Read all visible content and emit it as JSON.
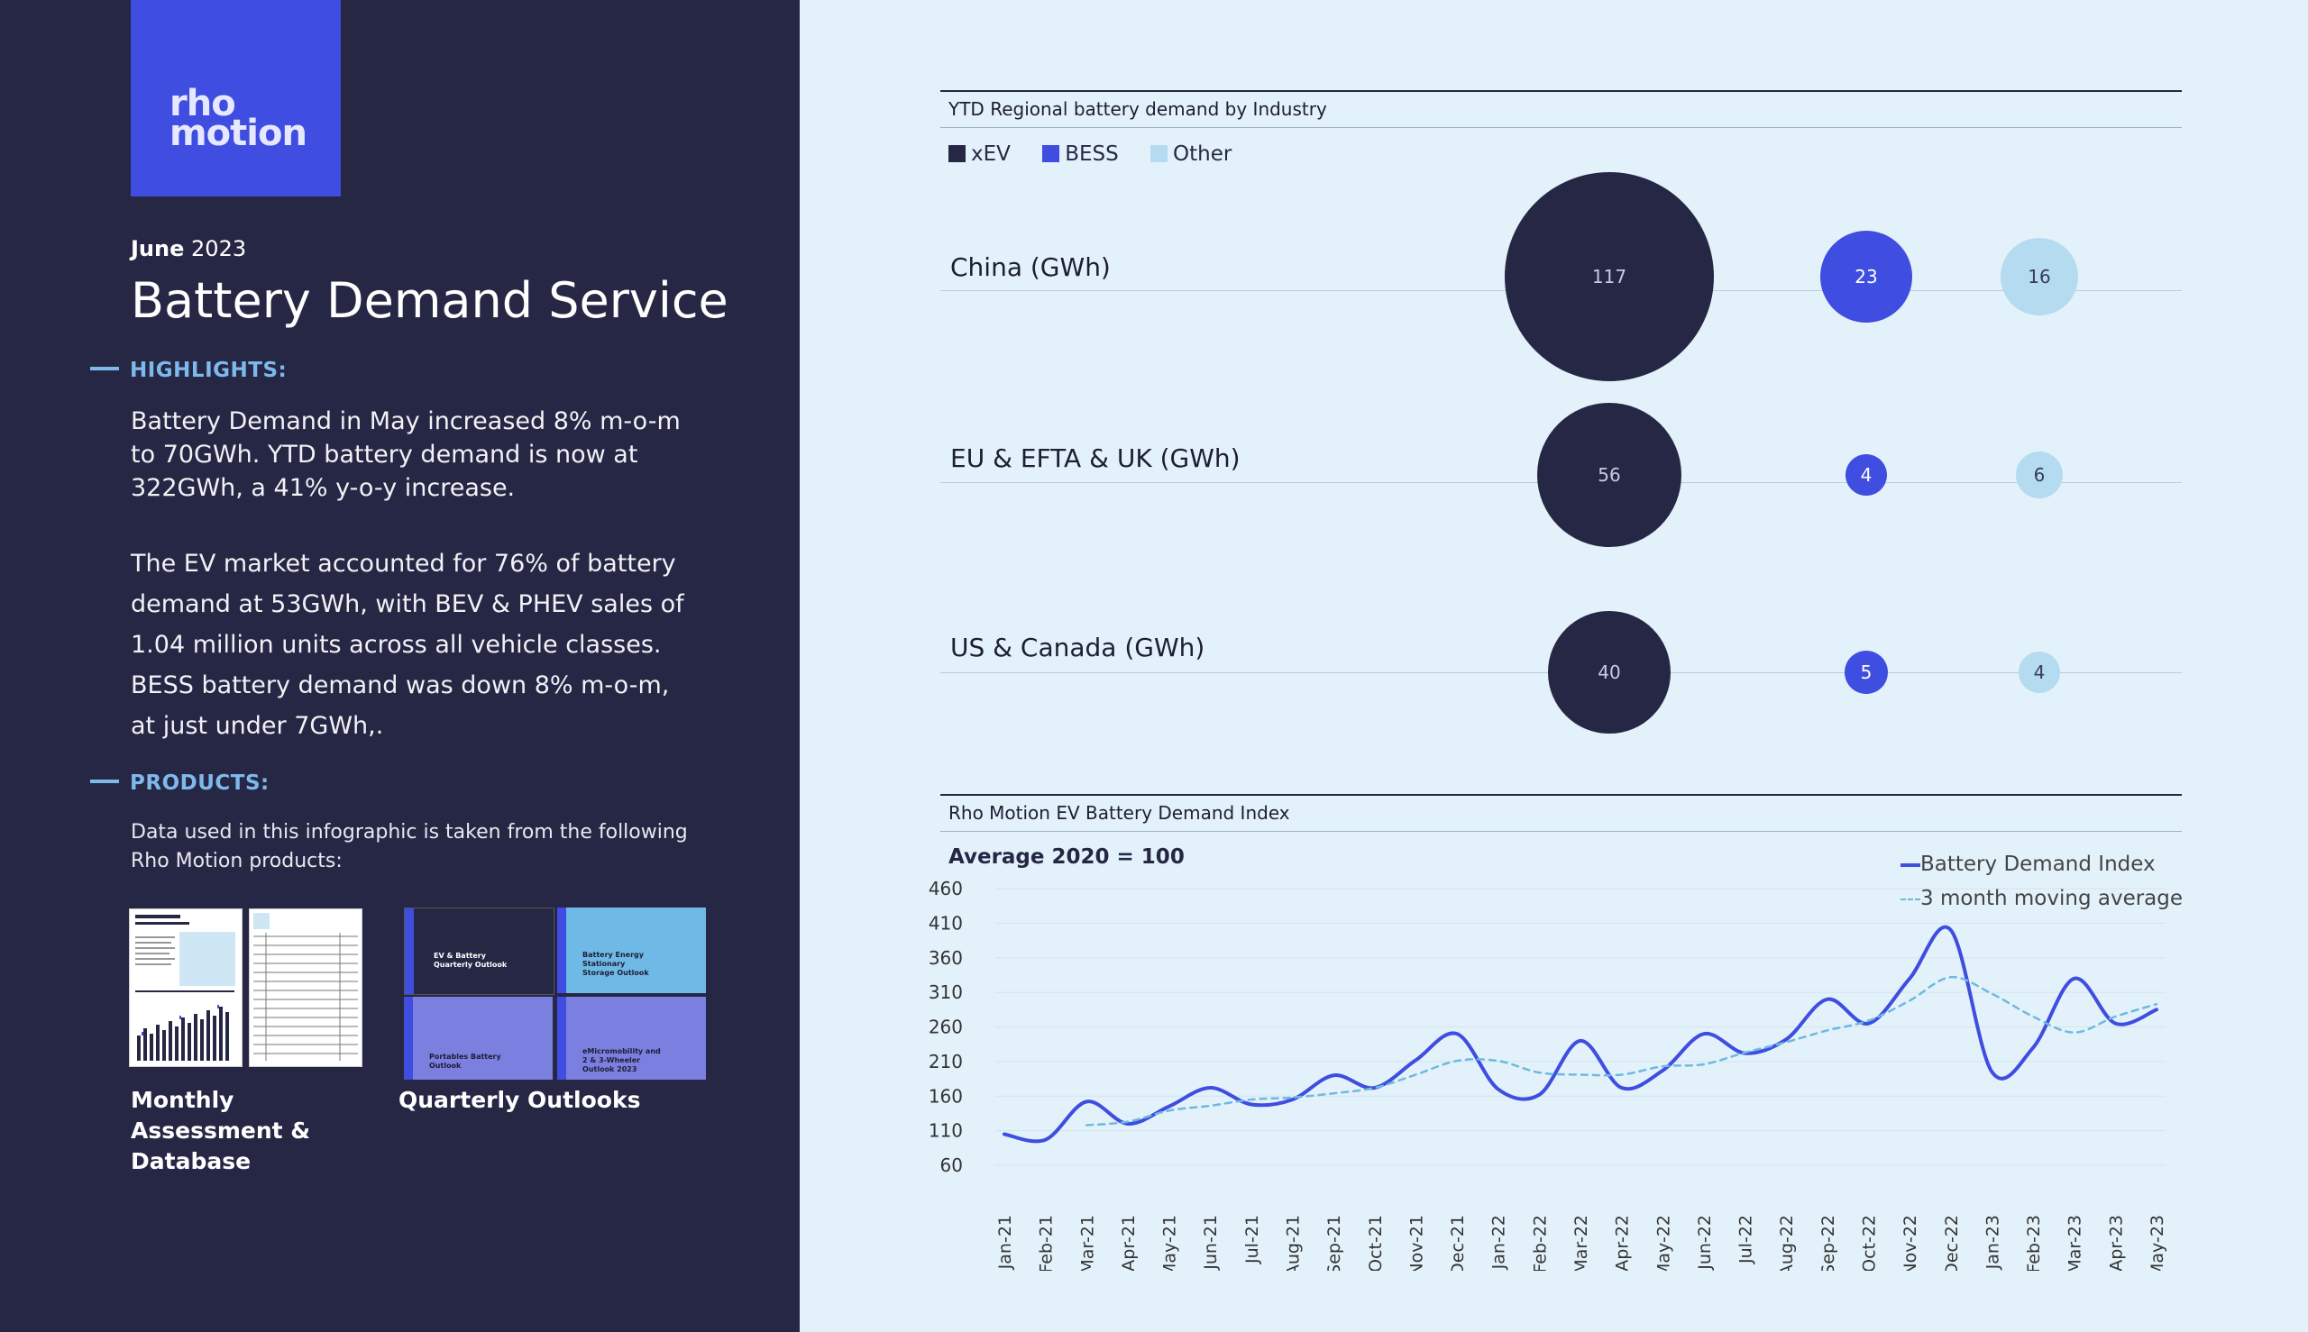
{
  "left": {
    "logo": {
      "line1": "rho",
      "line2": "motion"
    },
    "date": {
      "month": "June",
      "year": "2023"
    },
    "title": "Battery Demand Service",
    "highlights_heading": "HIGHLIGHTS:",
    "highlights_p1": "Battery Demand in May increased 8% m-o-m to 70GWh. YTD battery demand is now at 322GWh, a 41% y-o-y increase.",
    "highlights_p2": "The EV market accounted for 76% of battery demand at 53GWh, with BEV & PHEV sales of 1.04 million units across all vehicle classes.",
    "highlights_p3": "BESS battery demand was down 8% m-o-m, at just under 7GWh,.",
    "products_heading": "PRODUCTS:",
    "products_text": "Data used in this infographic is taken from the following Rho Motion products:",
    "product1": "Monthly Assessment & Database",
    "product2": "Quarterly Outlooks",
    "thumb_titles": [
      "EV & Battery Quarterly Outlook",
      "Battery Energy Stationary Storage Outlook",
      "Portables Battery Outlook",
      "eMicromobility and 2 & 3-Wheeler Outlook 2023"
    ]
  },
  "colors": {
    "xEV": "#262744",
    "BESS": "#3f4de0",
    "Other": "#b4dbef",
    "line": "#3f4de0",
    "avg": "#6fb9e0"
  },
  "chart_data": [
    {
      "type": "bubble",
      "title": "YTD Regional battery demand by Industry",
      "legend": [
        "xEV",
        "BESS",
        "Other"
      ],
      "rows": [
        {
          "label": "China (GWh)",
          "values": [
            117,
            23,
            16
          ]
        },
        {
          "label": "EU & EFTA & UK (GWh)",
          "values": [
            56,
            4,
            6
          ]
        },
        {
          "label": "US & Canada (GWh)",
          "values": [
            40,
            5,
            4
          ]
        }
      ]
    },
    {
      "type": "line",
      "title": "Rho Motion EV Battery Demand Index",
      "subtitle": "Average 2020 = 100",
      "ylim": [
        60,
        460
      ],
      "yticks": [
        460,
        410,
        360,
        310,
        260,
        210,
        160,
        110,
        60
      ],
      "x": [
        "Jan-21",
        "Feb-21",
        "Mar-21",
        "Apr-21",
        "May-21",
        "Jun-21",
        "Jul-21",
        "Aug-21",
        "Sep-21",
        "Oct-21",
        "Nov-21",
        "Dec-21",
        "Jan-22",
        "Feb-22",
        "Mar-22",
        "Apr-22",
        "May-22",
        "Jun-22",
        "Jul-22",
        "Aug-22",
        "Sep-22",
        "Oct-22",
        "Nov-22",
        "Dec-22",
        "Jan-23",
        "Feb-23",
        "Mar-23",
        "Apr-23",
        "May-23"
      ],
      "series": [
        {
          "name": "Battery Demand Index",
          "style": "solid",
          "values": [
            105,
            97,
            152,
            120,
            145,
            172,
            148,
            155,
            190,
            172,
            212,
            250,
            170,
            162,
            240,
            172,
            197,
            250,
            222,
            242,
            300,
            265,
            330,
            400,
            195,
            230,
            330,
            265,
            285
          ]
        },
        {
          "name": "3 month moving average",
          "style": "dashed",
          "values": [
            null,
            null,
            118,
            123,
            139,
            146,
            155,
            158,
            164,
            172,
            191,
            211,
            211,
            194,
            191,
            191,
            203,
            206,
            223,
            238,
            255,
            269,
            298,
            332,
            308,
            275,
            252,
            275,
            293
          ]
        }
      ]
    }
  ]
}
